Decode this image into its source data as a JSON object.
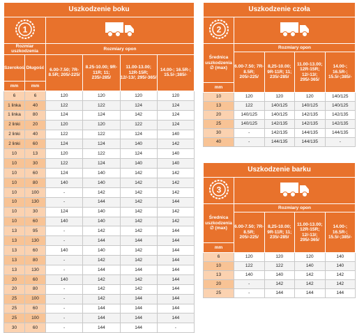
{
  "tables": [
    {
      "title": "Uszkodzenie boku",
      "badge": "1",
      "damage_label": "Rozmiar uszkodzenia",
      "sizes_label": "Rozmiary opon",
      "left_headers": [
        "Szerokość",
        "Długość"
      ],
      "units": [
        "mm",
        "mm"
      ],
      "columns": [
        "6.00-7.50; 7R-8.5R; 205/-225/",
        "8.25-10.00; 9R-11R; 11; 235/-285/",
        "11.00-13.00; 12R-15R; 12/-13/; 295/-365/",
        "14.00-; 16.5R-; 15.5/-;385/-"
      ],
      "rows": [
        [
          "6",
          "6",
          "120",
          "120",
          "120",
          "120"
        ],
        [
          "1 linka",
          "40",
          "122",
          "122",
          "124",
          "124"
        ],
        [
          "1 linka",
          "80",
          "124",
          "124",
          "142",
          "124"
        ],
        [
          "2 linki",
          "20",
          "120",
          "120",
          "122",
          "124"
        ],
        [
          "2 linki",
          "40",
          "122",
          "122",
          "124",
          "140"
        ],
        [
          "2 linki",
          "60",
          "124",
          "124",
          "140",
          "142"
        ],
        [
          "10",
          "13",
          "120",
          "122",
          "124",
          "140"
        ],
        [
          "10",
          "30",
          "122",
          "124",
          "140",
          "140"
        ],
        [
          "10",
          "60",
          "124",
          "140",
          "142",
          "142"
        ],
        [
          "10",
          "80",
          "140",
          "140",
          "142",
          "142"
        ],
        [
          "10",
          "100",
          "-",
          "142",
          "142",
          "142"
        ],
        [
          "10",
          "130",
          "-",
          "144",
          "142",
          "144"
        ],
        [
          "10",
          "30",
          "124",
          "140",
          "142",
          "142"
        ],
        [
          "10",
          "60",
          "140",
          "140",
          "142",
          "142"
        ],
        [
          "13",
          "95",
          "-",
          "142",
          "142",
          "144"
        ],
        [
          "13",
          "130",
          "-",
          "144",
          "144",
          "144"
        ],
        [
          "13",
          "60",
          "140",
          "140",
          "142",
          "144"
        ],
        [
          "13",
          "80",
          "-",
          "142",
          "142",
          "144"
        ],
        [
          "13",
          "130",
          "-",
          "144",
          "144",
          "144"
        ],
        [
          "20",
          "60",
          "140",
          "142",
          "142",
          "144"
        ],
        [
          "20",
          "80",
          "-",
          "142",
          "142",
          "144"
        ],
        [
          "25",
          "100",
          "-",
          "142",
          "144",
          "144"
        ],
        [
          "25",
          "60",
          "-",
          "144",
          "144",
          "144"
        ],
        [
          "25",
          "100",
          "-",
          "144",
          "144",
          "144"
        ],
        [
          "30",
          "60",
          "-",
          "144",
          "144",
          "-"
        ]
      ]
    },
    {
      "title": "Uszkodzenie czoła",
      "badge": "2",
      "damage_label": "Średnica uszkodzenia ∅ (max)",
      "sizes_label": "Rozmiary opon",
      "units": [
        "mm"
      ],
      "columns": [
        "6.00-7.50; 7R-8.5R; 205/-225/",
        "8,25-10.00; 9R-11R; 11; 235/-285/",
        "11.00-13.00; 12R-15R; 12/-13/; 295/-365/",
        "14.00-; 16.5R-; 15.5/-;385/-"
      ],
      "rows": [
        [
          "10",
          "120",
          "120",
          "120",
          "140/125"
        ],
        [
          "13",
          "122",
          "140/125",
          "140/125",
          "140/125"
        ],
        [
          "20",
          "140/125",
          "140/125",
          "142/135",
          "142/135"
        ],
        [
          "25",
          "140/125",
          "142/135",
          "142/135",
          "142/135"
        ],
        [
          "30",
          "-",
          "142/135",
          "144/135",
          "144/135"
        ],
        [
          "40",
          "-",
          "144/135",
          "144/135",
          "-"
        ]
      ]
    },
    {
      "title": "Uszkodzenie barku",
      "badge": "3",
      "damage_label": "Średnica uszkodzenia ∅ (max)",
      "sizes_label": "Rozmiary opon",
      "units": [
        "mm"
      ],
      "columns": [
        "6.00-7.50; 7R-8.5R; 205/-225/",
        "8,25-10.00; 9R-11R; 11; 235/-285/",
        "11.00-13.00; 12R-15R; 12/-13/; 295/-365/",
        "14.00-; 16.5R-; 15.5/-;385/-"
      ],
      "rows": [
        [
          "6",
          "120",
          "120",
          "120",
          "140"
        ],
        [
          "10",
          "122",
          "122",
          "140",
          "140"
        ],
        [
          "13",
          "140",
          "140",
          "142",
          "142"
        ],
        [
          "20",
          "-",
          "142",
          "142",
          "142"
        ],
        [
          "25",
          "-",
          "144",
          "144",
          "144"
        ]
      ]
    }
  ]
}
